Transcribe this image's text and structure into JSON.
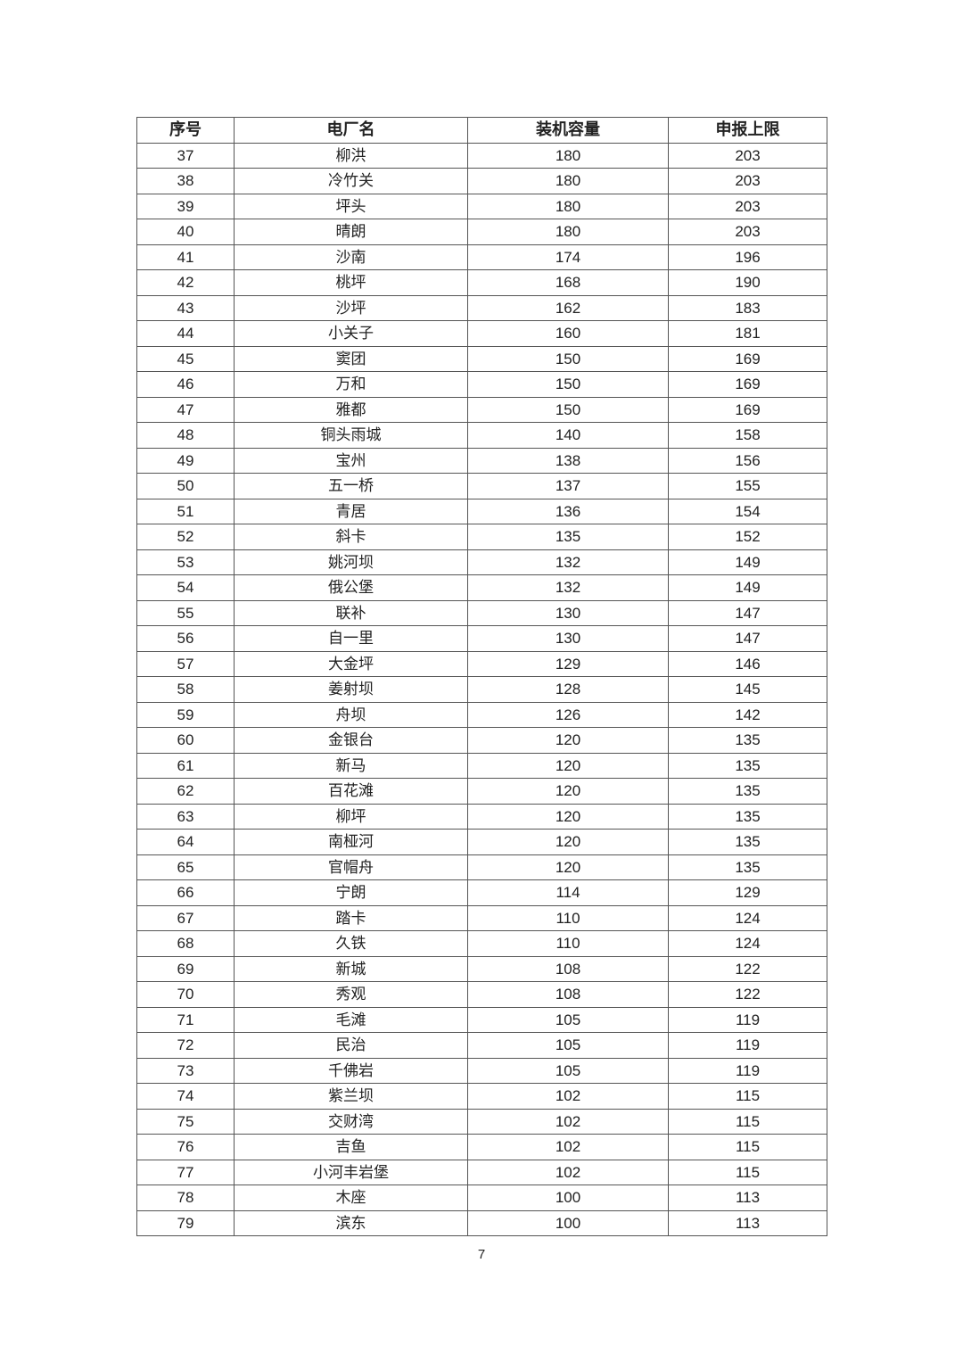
{
  "table": {
    "headers": [
      "序号",
      "电厂名",
      "装机容量",
      "申报上限"
    ],
    "rows": [
      [
        "37",
        "柳洪",
        "180",
        "203"
      ],
      [
        "38",
        "冷竹关",
        "180",
        "203"
      ],
      [
        "39",
        "坪头",
        "180",
        "203"
      ],
      [
        "40",
        "晴朗",
        "180",
        "203"
      ],
      [
        "41",
        "沙南",
        "174",
        "196"
      ],
      [
        "42",
        "桃坪",
        "168",
        "190"
      ],
      [
        "43",
        "沙坪",
        "162",
        "183"
      ],
      [
        "44",
        "小关子",
        "160",
        "181"
      ],
      [
        "45",
        "窦团",
        "150",
        "169"
      ],
      [
        "46",
        "万和",
        "150",
        "169"
      ],
      [
        "47",
        "雅都",
        "150",
        "169"
      ],
      [
        "48",
        "铜头雨城",
        "140",
        "158"
      ],
      [
        "49",
        "宝州",
        "138",
        "156"
      ],
      [
        "50",
        "五一桥",
        "137",
        "155"
      ],
      [
        "51",
        "青居",
        "136",
        "154"
      ],
      [
        "52",
        "斜卡",
        "135",
        "152"
      ],
      [
        "53",
        "姚河坝",
        "132",
        "149"
      ],
      [
        "54",
        "俄公堡",
        "132",
        "149"
      ],
      [
        "55",
        "联补",
        "130",
        "147"
      ],
      [
        "56",
        "自一里",
        "130",
        "147"
      ],
      [
        "57",
        "大金坪",
        "129",
        "146"
      ],
      [
        "58",
        "姜射坝",
        "128",
        "145"
      ],
      [
        "59",
        "舟坝",
        "126",
        "142"
      ],
      [
        "60",
        "金银台",
        "120",
        "135"
      ],
      [
        "61",
        "新马",
        "120",
        "135"
      ],
      [
        "62",
        "百花滩",
        "120",
        "135"
      ],
      [
        "63",
        "柳坪",
        "120",
        "135"
      ],
      [
        "64",
        "南桠河",
        "120",
        "135"
      ],
      [
        "65",
        "官帽舟",
        "120",
        "135"
      ],
      [
        "66",
        "宁朗",
        "114",
        "129"
      ],
      [
        "67",
        "踏卡",
        "110",
        "124"
      ],
      [
        "68",
        "久铁",
        "110",
        "124"
      ],
      [
        "69",
        "新城",
        "108",
        "122"
      ],
      [
        "70",
        "秀观",
        "108",
        "122"
      ],
      [
        "71",
        "毛滩",
        "105",
        "119"
      ],
      [
        "72",
        "民治",
        "105",
        "119"
      ],
      [
        "73",
        "千佛岩",
        "105",
        "119"
      ],
      [
        "74",
        "紫兰坝",
        "102",
        "115"
      ],
      [
        "75",
        "交财湾",
        "102",
        "115"
      ],
      [
        "76",
        "吉鱼",
        "102",
        "115"
      ],
      [
        "77",
        "小河丰岩堡",
        "102",
        "115"
      ],
      [
        "78",
        "木座",
        "100",
        "113"
      ],
      [
        "79",
        "滨东",
        "100",
        "113"
      ]
    ]
  },
  "page_number": "7"
}
